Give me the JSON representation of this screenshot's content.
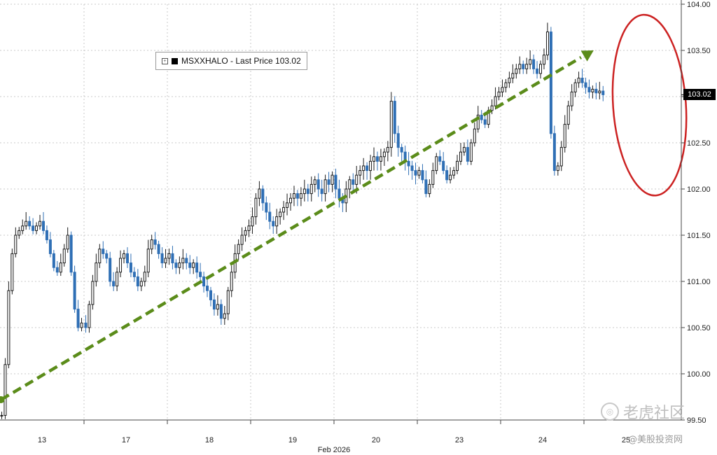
{
  "chart_data": {
    "type": "candlestick",
    "ticker": "MSXXHALO",
    "legend_label": "MSXXHALO - Last Price 103.02",
    "last_price": 103.02,
    "last_price_label": "103.02",
    "x_month_label": "Feb 2026",
    "x_ticks": [
      "13",
      "17",
      "18",
      "19",
      "20",
      "23",
      "24",
      "25"
    ],
    "y_ticks": [
      "99.50",
      "100.00",
      "100.50",
      "101.00",
      "101.50",
      "102.00",
      "102.50",
      "103.00",
      "103.50",
      "104.00"
    ],
    "ylim": [
      99.5,
      104.0
    ],
    "grid": true,
    "legend_position": "top-left",
    "y_axis_position": "right",
    "annotations": [
      {
        "type": "dashed-arrow",
        "color": "#5b8c1a",
        "from": [
          0.1,
          99.72
        ],
        "to": [
          57.0,
          103.5
        ]
      },
      {
        "type": "ellipse",
        "color": "#cc2222",
        "center": [
          61.35,
          102.9
        ],
        "radius_x": 3.1,
        "radius_y": 0.98
      }
    ],
    "series": [
      {
        "day": "13",
        "closes": [
          99.55,
          100.1,
          100.9,
          101.3,
          101.5,
          101.55,
          101.6,
          101.65,
          101.6,
          101.55,
          101.6,
          101.65,
          101.55,
          101.45,
          101.3,
          101.15,
          101.1,
          101.2,
          101.35,
          101.5,
          101.1,
          100.7,
          100.5,
          100.55
        ]
      },
      {
        "day": "17",
        "closes": [
          100.5,
          100.75,
          101.0,
          101.2,
          101.35,
          101.3,
          101.25,
          101.0,
          100.95,
          101.1,
          101.25,
          101.3,
          101.2,
          101.1,
          101.05,
          100.95,
          101.0,
          101.1,
          101.35,
          101.45,
          101.4,
          101.3,
          101.2,
          101.25
        ]
      },
      {
        "day": "18",
        "closes": [
          101.3,
          101.2,
          101.15,
          101.2,
          101.25,
          101.2,
          101.15,
          101.2,
          101.1,
          101.05,
          100.95,
          100.9,
          100.8,
          100.7,
          100.75,
          100.6,
          100.65,
          100.9,
          101.1,
          101.3,
          101.4,
          101.5,
          101.55,
          101.6
        ]
      },
      {
        "day": "19",
        "closes": [
          101.7,
          101.9,
          102.0,
          101.85,
          101.75,
          101.65,
          101.6,
          101.7,
          101.75,
          101.8,
          101.85,
          101.9,
          101.95,
          101.9,
          101.95,
          102.0,
          101.95,
          102.05,
          102.1,
          102.0,
          101.95,
          102.1,
          102.05,
          102.15
        ]
      },
      {
        "day": "20",
        "closes": [
          102.0,
          101.9,
          101.85,
          102.0,
          102.1,
          102.05,
          102.15,
          102.2,
          102.25,
          102.2,
          102.3,
          102.35,
          102.3,
          102.35,
          102.4,
          102.45,
          102.95,
          102.6,
          102.45,
          102.4,
          102.3,
          102.25,
          102.2,
          102.15
        ]
      },
      {
        "day": "23",
        "closes": [
          102.2,
          102.1,
          101.95,
          102.05,
          102.2,
          102.35,
          102.3,
          102.2,
          102.1,
          102.15,
          102.2,
          102.3,
          102.4,
          102.45,
          102.3,
          102.5,
          102.65,
          102.8,
          102.75,
          102.7,
          102.85,
          102.9,
          103.0,
          103.05
        ]
      },
      {
        "day": "24",
        "closes": [
          103.1,
          103.15,
          103.2,
          103.25,
          103.3,
          103.35,
          103.3,
          103.35,
          103.4,
          103.3,
          103.25,
          103.35,
          103.45,
          103.7,
          102.6,
          102.2,
          102.25,
          102.45,
          102.7,
          102.9,
          103.05,
          103.15,
          103.2,
          103.15
        ]
      },
      {
        "day": "25",
        "closes": [
          103.1,
          103.05,
          103.08,
          103.04,
          103.06,
          103.02
        ]
      }
    ]
  },
  "watermark": {
    "brand": "老虎社区",
    "sub": "@美股投资网"
  }
}
